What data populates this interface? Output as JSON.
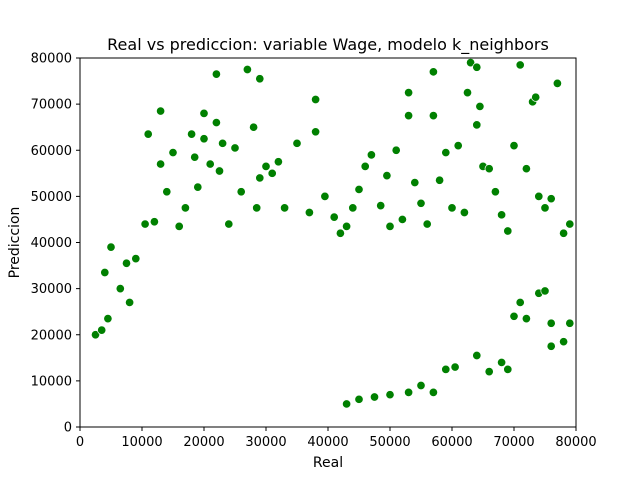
{
  "chart_data": {
    "type": "scatter",
    "title": "Real vs prediccion: variable Wage, modelo k_neighbors",
    "xlabel": "Real",
    "ylabel": "Prediccion",
    "xlim": [
      0,
      80000
    ],
    "ylim": [
      0,
      80000
    ],
    "xticks": [
      0,
      10000,
      20000,
      30000,
      40000,
      50000,
      60000,
      70000,
      80000
    ],
    "yticks": [
      0,
      10000,
      20000,
      30000,
      40000,
      50000,
      60000,
      70000,
      80000
    ],
    "grid": false,
    "legend": "none",
    "marker_color": "#008000",
    "marker_edge_color": "#ffffff",
    "series": [
      {
        "points": [
          [
            2500,
            20000
          ],
          [
            3500,
            21000
          ],
          [
            4500,
            23500
          ],
          [
            4000,
            33500
          ],
          [
            5000,
            39000
          ],
          [
            6500,
            30000
          ],
          [
            7500,
            35500
          ],
          [
            8000,
            27000
          ],
          [
            9000,
            36500
          ],
          [
            10500,
            44000
          ],
          [
            11000,
            63500
          ],
          [
            12000,
            44500
          ],
          [
            13000,
            57000
          ],
          [
            13000,
            68500
          ],
          [
            14000,
            51000
          ],
          [
            15000,
            59500
          ],
          [
            16000,
            43500
          ],
          [
            17000,
            47500
          ],
          [
            18000,
            63500
          ],
          [
            18500,
            58500
          ],
          [
            19000,
            52000
          ],
          [
            20000,
            68000
          ],
          [
            20000,
            62500
          ],
          [
            21000,
            57000
          ],
          [
            22000,
            76500
          ],
          [
            22000,
            66000
          ],
          [
            22500,
            55500
          ],
          [
            23000,
            61500
          ],
          [
            24000,
            44000
          ],
          [
            25000,
            60500
          ],
          [
            26000,
            51000
          ],
          [
            27000,
            77500
          ],
          [
            28000,
            65000
          ],
          [
            28500,
            47500
          ],
          [
            29000,
            75500
          ],
          [
            29000,
            54000
          ],
          [
            30000,
            56500
          ],
          [
            31000,
            55000
          ],
          [
            32000,
            57500
          ],
          [
            33000,
            47500
          ],
          [
            35000,
            61500
          ],
          [
            37000,
            46500
          ],
          [
            38000,
            71000
          ],
          [
            38000,
            64000
          ],
          [
            39500,
            50000
          ],
          [
            41000,
            45500
          ],
          [
            42000,
            42000
          ],
          [
            43000,
            43500
          ],
          [
            44000,
            47500
          ],
          [
            45000,
            51500
          ],
          [
            46000,
            56500
          ],
          [
            47000,
            59000
          ],
          [
            48500,
            48000
          ],
          [
            49500,
            54500
          ],
          [
            50000,
            43500
          ],
          [
            51000,
            60000
          ],
          [
            52000,
            45000
          ],
          [
            53000,
            72500
          ],
          [
            53000,
            67500
          ],
          [
            54000,
            53000
          ],
          [
            55000,
            48500
          ],
          [
            56000,
            44000
          ],
          [
            57000,
            77000
          ],
          [
            57000,
            67500
          ],
          [
            58000,
            53500
          ],
          [
            59000,
            59500
          ],
          [
            60000,
            47500
          ],
          [
            61000,
            61000
          ],
          [
            62000,
            46500
          ],
          [
            62500,
            72500
          ],
          [
            63000,
            79000
          ],
          [
            64000,
            78000
          ],
          [
            64000,
            65500
          ],
          [
            64500,
            69500
          ],
          [
            65000,
            56500
          ],
          [
            66000,
            56000
          ],
          [
            67000,
            51000
          ],
          [
            68000,
            46000
          ],
          [
            69000,
            42500
          ],
          [
            70000,
            61000
          ],
          [
            71000,
            78500
          ],
          [
            72000,
            56000
          ],
          [
            73000,
            70500
          ],
          [
            73500,
            71500
          ],
          [
            74000,
            50000
          ],
          [
            75000,
            47500
          ],
          [
            76000,
            49500
          ],
          [
            77000,
            74500
          ],
          [
            78000,
            42000
          ],
          [
            79000,
            44000
          ],
          [
            53000,
            7500
          ],
          [
            55000,
            9000
          ],
          [
            57000,
            7500
          ],
          [
            59000,
            12500
          ],
          [
            60500,
            13000
          ],
          [
            64000,
            15500
          ],
          [
            66000,
            12000
          ],
          [
            68000,
            14000
          ],
          [
            69000,
            12500
          ],
          [
            70000,
            24000
          ],
          [
            71000,
            27000
          ],
          [
            72000,
            23500
          ],
          [
            74000,
            29000
          ],
          [
            75000,
            29500
          ],
          [
            76000,
            17500
          ],
          [
            76000,
            22500
          ],
          [
            78000,
            18500
          ],
          [
            79000,
            22500
          ],
          [
            43000,
            5000
          ],
          [
            45000,
            6000
          ],
          [
            47500,
            6500
          ],
          [
            50000,
            7000
          ]
        ]
      }
    ]
  }
}
